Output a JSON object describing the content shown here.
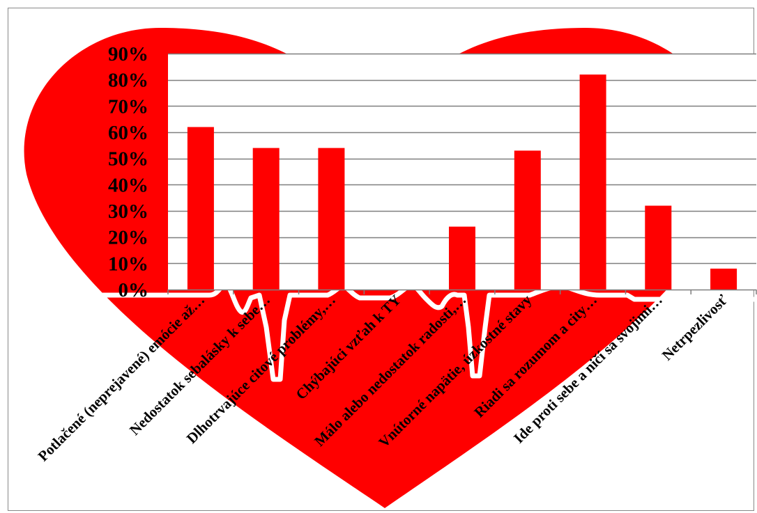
{
  "chart_data": {
    "type": "bar",
    "title": "",
    "xlabel": "",
    "ylabel": "",
    "ylim": [
      0,
      0.9
    ],
    "yticks": [
      "0%",
      "10%",
      "20%",
      "30%",
      "40%",
      "50%",
      "60%",
      "70%",
      "80%",
      "90%"
    ],
    "categories": [
      "Potlačené (neprejavené) emócie až…",
      "Nedostatok sebalásky k sebe…",
      "Dlhotrvajúce citové problémy,…",
      "Chýbajúci vzťah k TY",
      "Málo alebo nedostatok radosti,…",
      "Vnútorné napätie, úzkostné stavy",
      "Riadi sa rozumom a city…",
      "Ide proti sebe a ničí sa svojimi…",
      "Netrpezlivosť"
    ],
    "values": [
      0.62,
      0.54,
      0.54,
      0,
      0.24,
      0.53,
      0.82,
      0.32,
      0.08
    ],
    "grid": true,
    "legend": "none",
    "colors": {
      "bar": "#ff0000",
      "heart": "#ff0000",
      "gridline": "#7f7f7f",
      "plot_area": "#ffffff",
      "ecg_line": "#ffffff"
    }
  }
}
